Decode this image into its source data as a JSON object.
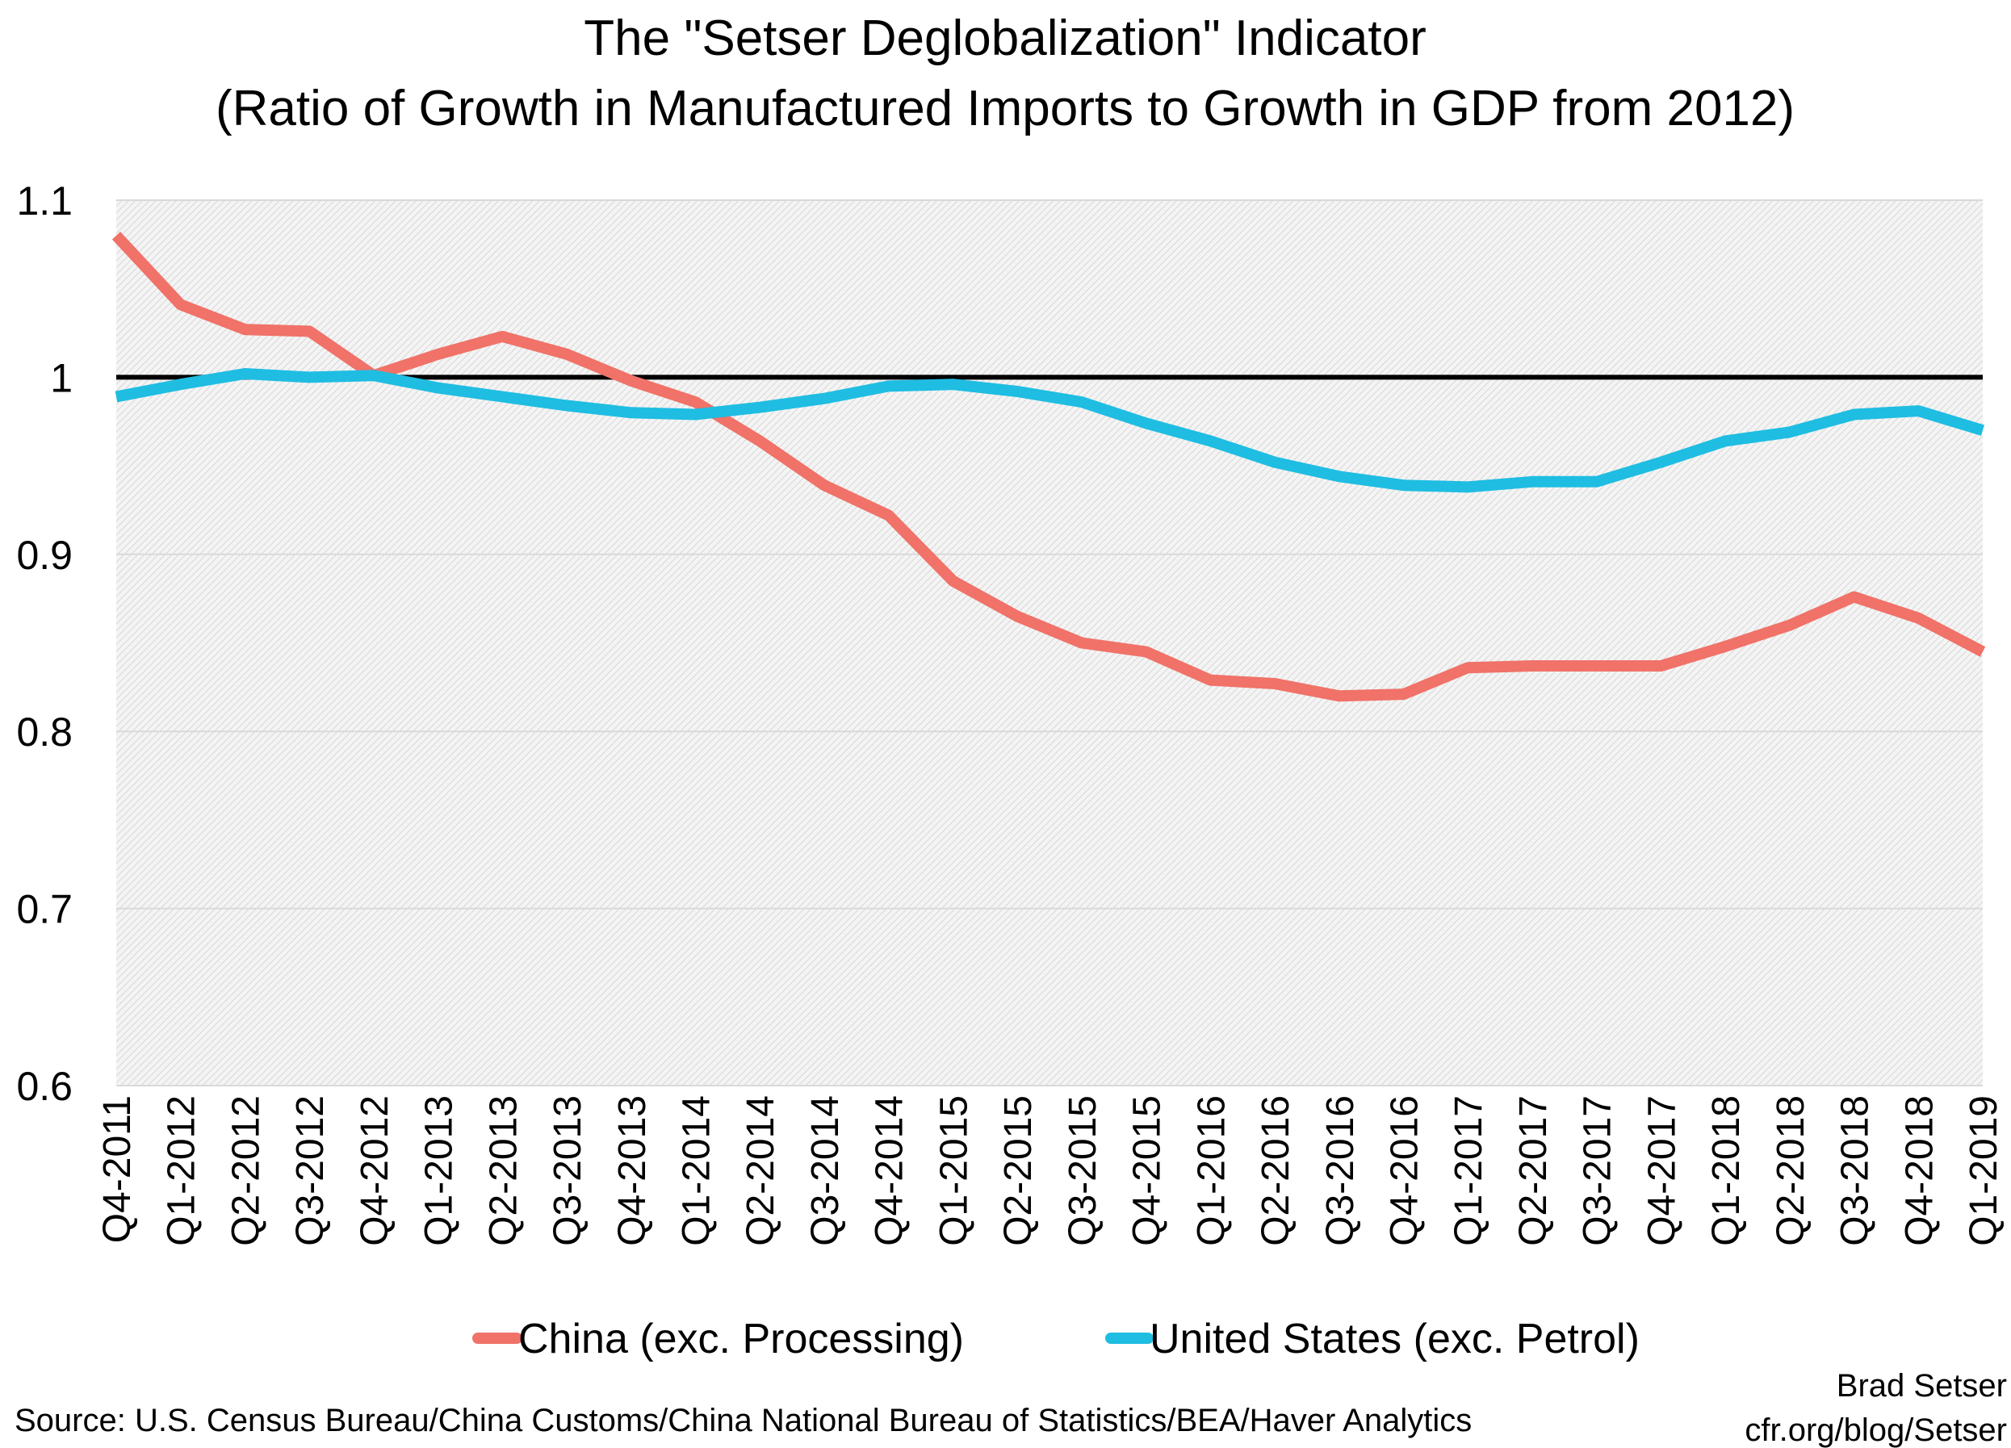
{
  "chart_data": {
    "type": "line",
    "title": "The \"Setser Deglobalization\" Indicator",
    "subtitle": "(Ratio of Growth in Manufactured Imports to Growth in GDP from 2012)",
    "xlabel": "",
    "ylabel": "",
    "ylim": [
      0.6,
      1.1
    ],
    "yticks": [
      "0.6",
      "0.7",
      "0.8",
      "0.9",
      "1",
      "1.1"
    ],
    "yticks_values": [
      0.6,
      0.7,
      0.8,
      0.9,
      1.0,
      1.1
    ],
    "reference_line": 1.0,
    "grid": true,
    "legend_position": "bottom",
    "categories": [
      "Q4-2011",
      "Q1-2012",
      "Q2-2012",
      "Q3-2012",
      "Q4-2012",
      "Q1-2013",
      "Q2-2013",
      "Q3-2013",
      "Q4-2013",
      "Q1-2014",
      "Q2-2014",
      "Q3-2014",
      "Q4-2014",
      "Q1-2015",
      "Q2-2015",
      "Q3-2015",
      "Q4-2015",
      "Q1-2016",
      "Q2-2016",
      "Q3-2016",
      "Q4-2016",
      "Q1-2017",
      "Q2-2017",
      "Q3-2017",
      "Q4-2017",
      "Q1-2018",
      "Q2-2018",
      "Q3-2018",
      "Q4-2018",
      "Q1-2019"
    ],
    "series": [
      {
        "name": "China (exc. Processing)",
        "color": "#f07268",
        "values": [
          1.08,
          1.041,
          1.027,
          1.026,
          1.001,
          1.013,
          1.023,
          1.013,
          0.998,
          0.986,
          0.964,
          0.939,
          0.922,
          0.885,
          0.865,
          0.85,
          0.845,
          0.829,
          0.827,
          0.82,
          0.821,
          0.836,
          0.837,
          0.837,
          0.837,
          0.848,
          0.86,
          0.876,
          0.864,
          0.845
        ]
      },
      {
        "name": "United States (exc. Petrol)",
        "color": "#1fbde2",
        "values": [
          0.989,
          0.996,
          1.002,
          1.0,
          1.001,
          0.994,
          0.989,
          0.984,
          0.98,
          0.979,
          0.983,
          0.988,
          0.995,
          0.996,
          0.992,
          0.986,
          0.974,
          0.964,
          0.952,
          0.944,
          0.939,
          0.938,
          0.941,
          0.941,
          0.952,
          0.964,
          0.969,
          0.979,
          0.981,
          0.97
        ]
      }
    ]
  },
  "footer": {
    "source": "Source: U.S. Census Bureau/China Customs/China National Bureau of Statistics/BEA/Haver Analytics",
    "author": "Brad Setser",
    "url": "cfr.org/blog/Setser"
  }
}
